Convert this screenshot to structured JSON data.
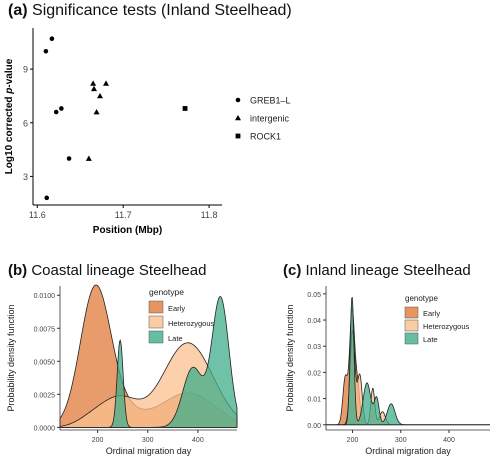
{
  "panels": {
    "a": {
      "letter": "(a)",
      "title": "Significance tests (Inland Steelhead)"
    },
    "b": {
      "letter": "(b)",
      "title": "Coastal lineage Steelhead"
    },
    "c": {
      "letter": "(c)",
      "title": "Inland lineage Steelhead"
    }
  },
  "chart_data": [
    {
      "type": "scatter",
      "panel": "a",
      "title": "Significance tests (Inland Steelhead)",
      "xlabel": "Position (Mbp)",
      "ylabel": "Log10 corrected p-value",
      "ylabel_parts": {
        "pre": "Log10 corrected ",
        "italic": "p",
        "post": "-value"
      },
      "xlim": [
        11.595,
        11.815
      ],
      "ylim": [
        1.4,
        11.3
      ],
      "xticks": [
        11.6,
        11.7,
        11.8
      ],
      "xtick_labels": [
        "11.6",
        "11.7",
        "11.8"
      ],
      "yticks": [
        3,
        6,
        9
      ],
      "ytick_labels": [
        "3",
        "6",
        "9"
      ],
      "legend": {
        "placement": "right",
        "entries": [
          "GREB1–L",
          "intergenic",
          "ROCK1"
        ]
      },
      "series": [
        {
          "name": "GREB1–L",
          "shape": "circle",
          "points": [
            [
              11.61,
              10.0
            ],
            [
              11.617,
              10.7
            ],
            [
              11.622,
              6.6
            ],
            [
              11.628,
              6.8
            ],
            [
              11.637,
              4.0
            ],
            [
              11.611,
              1.8
            ]
          ]
        },
        {
          "name": "intergenic",
          "shape": "triangle",
          "points": [
            [
              11.66,
              4.0
            ],
            [
              11.665,
              8.2
            ],
            [
              11.666,
              7.9
            ],
            [
              11.673,
              7.5
            ],
            [
              11.68,
              8.2
            ],
            [
              11.669,
              6.6
            ]
          ]
        },
        {
          "name": "ROCK1",
          "shape": "square",
          "points": [
            [
              11.772,
              6.8
            ]
          ]
        }
      ]
    },
    {
      "type": "area",
      "panel": "b",
      "title": "Coastal lineage Steelhead",
      "xlabel": "Ordinal migration day",
      "ylabel": "Probability density function",
      "xlim": [
        125,
        478
      ],
      "ylim": [
        -0.0002,
        0.0107
      ],
      "xticks": [
        200,
        300,
        400
      ],
      "xtick_labels": [
        "200",
        "300",
        "400"
      ],
      "yticks": [
        0,
        0.0025,
        0.005,
        0.0075,
        0.01
      ],
      "ytick_labels": [
        "0.0000",
        "0.0025",
        "0.0050",
        "0.0075",
        "0.0100"
      ],
      "legend": {
        "title": "genotype",
        "placement": "top-center",
        "entries": [
          "Early",
          "Heterozygous",
          "Late"
        ]
      },
      "colors": {
        "Early": "#e07b39",
        "Heterozygous": "#f9c08f",
        "Late": "#3fae8a"
      },
      "series": [
        {
          "name": "Early",
          "peaks": [
            [
              195,
              0.01,
              30
            ],
            [
              240,
              0.0014,
              40
            ],
            [
              380,
              0.0026,
              55
            ]
          ]
        },
        {
          "name": "Heterozygous",
          "peaks": [
            [
              190,
              0.0007,
              30
            ],
            [
              245,
              0.0021,
              35
            ],
            [
              380,
              0.0064,
              50
            ]
          ]
        },
        {
          "name": "Late",
          "peaks": [
            [
              245,
              0.0066,
              6
            ],
            [
              390,
              0.0045,
              20
            ],
            [
              445,
              0.0098,
              17
            ]
          ]
        }
      ]
    },
    {
      "type": "area",
      "panel": "c",
      "title": "Inland lineage Steelhead",
      "xlabel": "Ordinal migration day",
      "ylabel": "Probability density function",
      "xlim": [
        145,
        485
      ],
      "ylim": [
        -0.002,
        0.053
      ],
      "xticks": [
        200,
        300,
        400
      ],
      "xtick_labels": [
        "200",
        "300",
        "400"
      ],
      "yticks": [
        0,
        0.01,
        0.02,
        0.03,
        0.04,
        0.05
      ],
      "ytick_labels": [
        "0.00",
        "0.01",
        "0.02",
        "0.03",
        "0.04",
        "0.05"
      ],
      "legend": {
        "title": "genotype",
        "placement": "top-right",
        "entries": [
          "Early",
          "Heterozygous",
          "Late"
        ]
      },
      "colors": {
        "Early": "#e07b39",
        "Heterozygous": "#f9c08f",
        "Late": "#3fae8a"
      },
      "series": [
        {
          "name": "Early",
          "peaks": [
            [
              185,
              0.018,
              5
            ],
            [
              199,
              0.043,
              5
            ],
            [
              210,
              0.015,
              5
            ]
          ]
        },
        {
          "name": "Heterozygous",
          "peaks": [
            [
              200,
              0.036,
              5
            ],
            [
              215,
              0.019,
              5
            ],
            [
              242,
              0.014,
              4
            ],
            [
              262,
              0.005,
              6
            ]
          ]
        },
        {
          "name": "Late",
          "peaks": [
            [
              199,
              0.049,
              4
            ],
            [
              230,
              0.016,
              8
            ],
            [
              250,
              0.01,
              5
            ],
            [
              280,
              0.008,
              8
            ]
          ]
        }
      ]
    }
  ]
}
